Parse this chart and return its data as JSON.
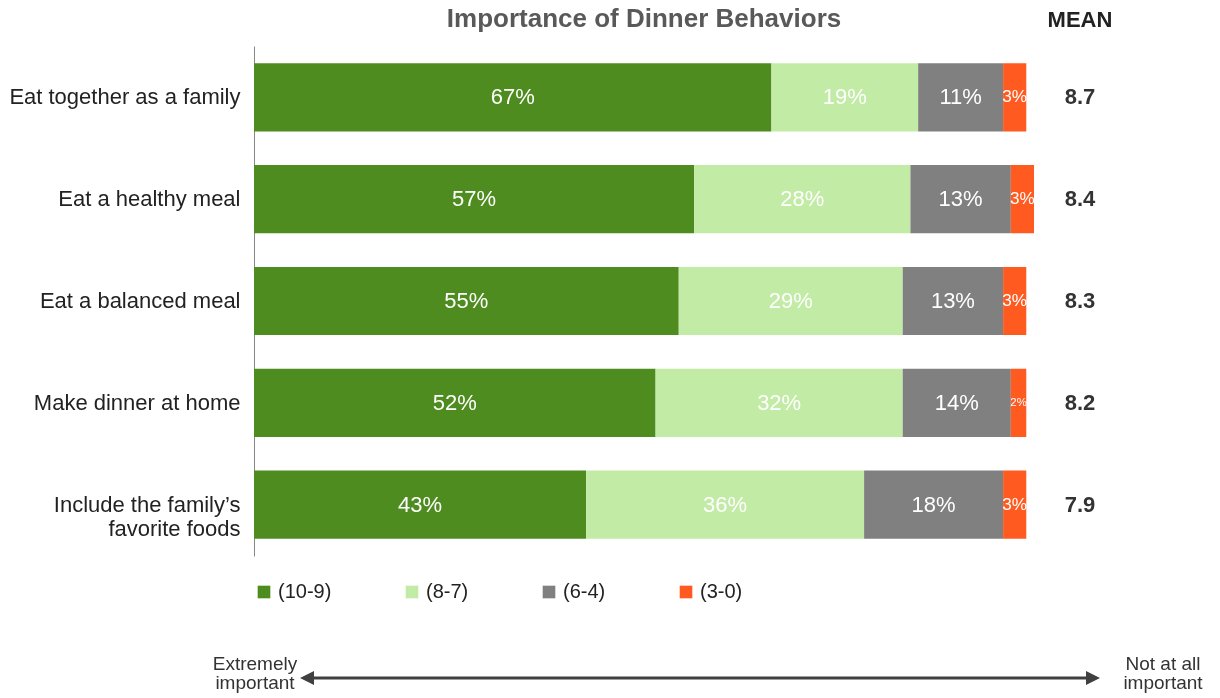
{
  "chart_data": {
    "type": "bar",
    "orientation": "horizontal",
    "stacked": true,
    "title": "Importance of Dinner Behaviors",
    "categories": [
      "Eat together as a family",
      "Eat a healthy meal",
      "Eat a balanced meal",
      "Make dinner at home",
      "Include the family’s favorite foods"
    ],
    "series": [
      {
        "name": "(10-9)",
        "color": "#4e8c1f",
        "values": [
          67,
          57,
          55,
          52,
          43
        ],
        "value_labels": [
          "67%",
          "57%",
          "55%",
          "52%",
          "43%"
        ]
      },
      {
        "name": "(8-7)",
        "color": "#c2eba6",
        "values": [
          19,
          28,
          29,
          32,
          36
        ],
        "value_labels": [
          "19%",
          "28%",
          "29%",
          "32%",
          "36%"
        ]
      },
      {
        "name": "(6-4)",
        "color": "#808080",
        "values": [
          11,
          13,
          13,
          14,
          18
        ],
        "value_labels": [
          "11%",
          "13%",
          "13%",
          "14%",
          "18%"
        ]
      },
      {
        "name": "(3-0)",
        "color": "#ff5a1f",
        "values": [
          3,
          3,
          3,
          2,
          3
        ],
        "value_labels": [
          "3%",
          "3%",
          "3%",
          "2%",
          "3%"
        ]
      }
    ],
    "legend": "bottom",
    "annotations": [
      "MEAN",
      "8.7",
      "8.4",
      "8.3",
      "8.2",
      "7.9",
      "Extremely important",
      "Not at all important"
    ]
  }
}
